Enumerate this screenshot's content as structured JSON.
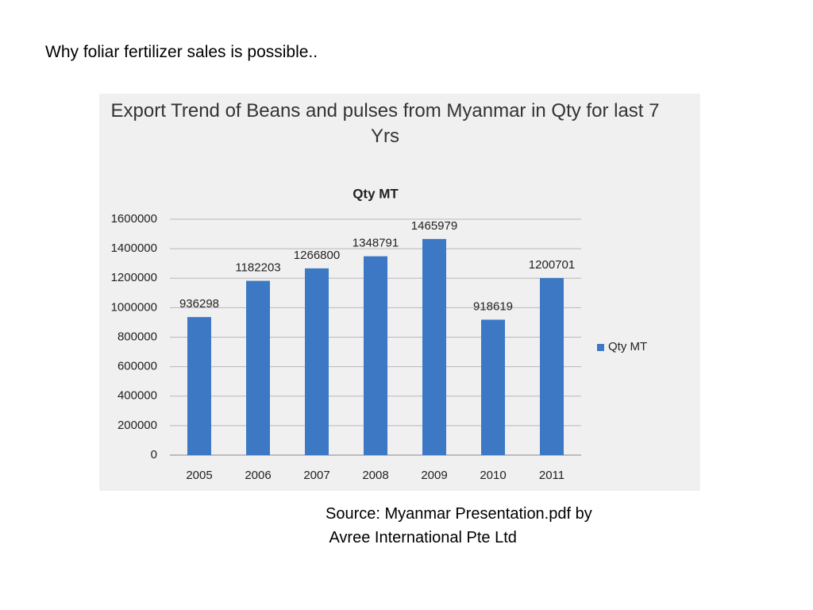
{
  "slide_title": "Why foliar fertilizer sales is possible..",
  "source_lines": [
    "Source: Myanmar Presentation.pdf by",
    " Avree International Pte Ltd"
  ],
  "chart_data": {
    "type": "bar",
    "title": "Export Trend of Beans and pulses from Myanmar in Qty for last 7 Yrs",
    "subtitle": "Qty MT",
    "categories": [
      "2005",
      "2006",
      "2007",
      "2008",
      "2009",
      "2010",
      "2011"
    ],
    "series": [
      {
        "name": "Qty MT",
        "color": "#3d78c4",
        "values": [
          936298,
          1182203,
          1266800,
          1348791,
          1465979,
          918619,
          1200701
        ]
      }
    ],
    "ylim": [
      0,
      1600000
    ],
    "yticks": [
      0,
      200000,
      400000,
      600000,
      800000,
      1000000,
      1200000,
      1400000,
      1600000
    ],
    "grid": true,
    "legend": "right"
  }
}
